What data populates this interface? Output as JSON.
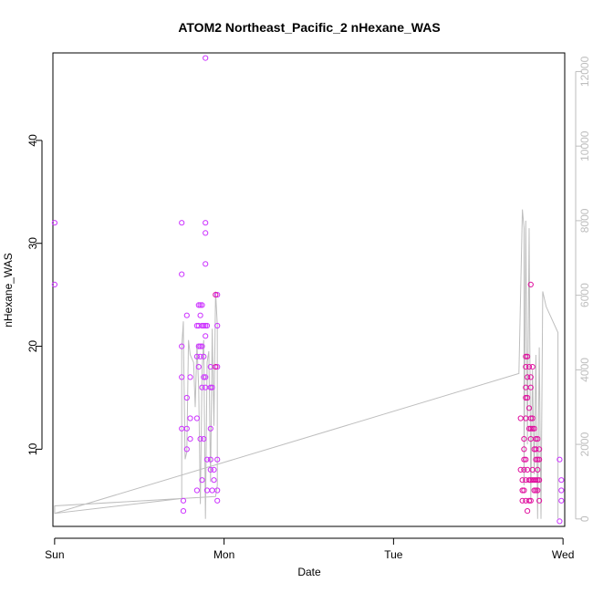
{
  "chart_data": {
    "type": "scatter",
    "title": "ATOM2 Northeast_Pacific_2 nHexane_WAS",
    "xlabel": "Date",
    "ylabel": "nHexane_WAS",
    "x_tick_labels": [
      "Sun",
      "Mon",
      "Tue",
      "Wed"
    ],
    "xlim_days": [
      -0.01,
      3.01
    ],
    "ylim": [
      2.5,
      48.5
    ],
    "y_ticks": [
      10,
      20,
      30,
      40
    ],
    "right_axis": {
      "ylim": [
        -200,
        12500
      ],
      "ticks": [
        0,
        2000,
        4000,
        6000,
        8000,
        10000,
        12000
      ],
      "tick_labels": [
        "0",
        "2000",
        "4000",
        "6000",
        "8000",
        "10000",
        "12000"
      ]
    },
    "colors": {
      "points_a": "#cc33ff",
      "points_b": "#e0109f",
      "line": "#bebebe",
      "axis": "#000000",
      "right_axis": "#bebebe"
    },
    "series": [
      {
        "color_key": "points_a",
        "points": [
          [
            0.0,
            32
          ],
          [
            0.0,
            26
          ],
          [
            0.75,
            32
          ],
          [
            0.75,
            27
          ],
          [
            0.75,
            20
          ],
          [
            0.75,
            17
          ],
          [
            0.75,
            12
          ],
          [
            0.76,
            5
          ],
          [
            0.76,
            4
          ],
          [
            0.78,
            23
          ],
          [
            0.78,
            15
          ],
          [
            0.78,
            12
          ],
          [
            0.78,
            10
          ],
          [
            0.8,
            17
          ],
          [
            0.8,
            13
          ],
          [
            0.8,
            11
          ],
          [
            0.84,
            22
          ],
          [
            0.84,
            19
          ],
          [
            0.84,
            13
          ],
          [
            0.84,
            6
          ],
          [
            0.85,
            24
          ],
          [
            0.85,
            22
          ],
          [
            0.85,
            20
          ],
          [
            0.85,
            18
          ],
          [
            0.86,
            24
          ],
          [
            0.86,
            23
          ],
          [
            0.86,
            20
          ],
          [
            0.86,
            19
          ],
          [
            0.86,
            11
          ],
          [
            0.87,
            24
          ],
          [
            0.87,
            22
          ],
          [
            0.87,
            20
          ],
          [
            0.87,
            16
          ],
          [
            0.87,
            7
          ],
          [
            0.88,
            22
          ],
          [
            0.88,
            19
          ],
          [
            0.88,
            17
          ],
          [
            0.88,
            11
          ],
          [
            0.89,
            48
          ],
          [
            0.89,
            32
          ],
          [
            0.89,
            31
          ],
          [
            0.89,
            28
          ],
          [
            0.89,
            22
          ],
          [
            0.89,
            21
          ],
          [
            0.89,
            17
          ],
          [
            0.89,
            16
          ],
          [
            0.9,
            22
          ],
          [
            0.9,
            9
          ],
          [
            0.9,
            6
          ],
          [
            0.92,
            18
          ],
          [
            0.92,
            16
          ],
          [
            0.92,
            12
          ],
          [
            0.92,
            9
          ],
          [
            0.92,
            8
          ],
          [
            0.93,
            16
          ],
          [
            0.93,
            6
          ],
          [
            0.94,
            8
          ],
          [
            0.94,
            7
          ],
          [
            0.96,
            25
          ],
          [
            0.96,
            22
          ],
          [
            0.96,
            18
          ],
          [
            0.96,
            9
          ],
          [
            0.96,
            6
          ],
          [
            0.96,
            5
          ],
          [
            2.98,
            9
          ],
          [
            2.99,
            7
          ],
          [
            2.99,
            6
          ],
          [
            2.99,
            5
          ],
          [
            2.98,
            3
          ]
        ]
      },
      {
        "color_key": "points_b",
        "points": [
          [
            0.95,
            25
          ],
          [
            0.95,
            18
          ],
          [
            2.75,
            13
          ],
          [
            2.75,
            8
          ],
          [
            2.76,
            7
          ],
          [
            2.76,
            6
          ],
          [
            2.76,
            5
          ],
          [
            2.77,
            11
          ],
          [
            2.77,
            10
          ],
          [
            2.77,
            9
          ],
          [
            2.77,
            8
          ],
          [
            2.77,
            6
          ],
          [
            2.78,
            19
          ],
          [
            2.78,
            18
          ],
          [
            2.78,
            16
          ],
          [
            2.78,
            15
          ],
          [
            2.78,
            13
          ],
          [
            2.78,
            9
          ],
          [
            2.78,
            7
          ],
          [
            2.78,
            5
          ],
          [
            2.79,
            19
          ],
          [
            2.79,
            17
          ],
          [
            2.79,
            15
          ],
          [
            2.79,
            8
          ],
          [
            2.79,
            4
          ],
          [
            2.8,
            18
          ],
          [
            2.8,
            14
          ],
          [
            2.8,
            12
          ],
          [
            2.8,
            7
          ],
          [
            2.8,
            5
          ],
          [
            2.81,
            26
          ],
          [
            2.81,
            17
          ],
          [
            2.81,
            16
          ],
          [
            2.81,
            13
          ],
          [
            2.81,
            12
          ],
          [
            2.81,
            11
          ],
          [
            2.81,
            7
          ],
          [
            2.81,
            5
          ],
          [
            2.82,
            18
          ],
          [
            2.82,
            13
          ],
          [
            2.82,
            12
          ],
          [
            2.82,
            8
          ],
          [
            2.82,
            7
          ],
          [
            2.83,
            12
          ],
          [
            2.83,
            10
          ],
          [
            2.83,
            7
          ],
          [
            2.83,
            6
          ],
          [
            2.84,
            11
          ],
          [
            2.84,
            10
          ],
          [
            2.84,
            9
          ],
          [
            2.84,
            7
          ],
          [
            2.84,
            6
          ],
          [
            2.85,
            11
          ],
          [
            2.85,
            9
          ],
          [
            2.85,
            8
          ],
          [
            2.85,
            7
          ],
          [
            2.85,
            6
          ],
          [
            2.86,
            10
          ],
          [
            2.86,
            9
          ],
          [
            2.86,
            7
          ],
          [
            2.86,
            5
          ]
        ]
      }
    ],
    "line_series": {
      "color_key": "line",
      "axis": "right",
      "points": [
        [
          0.0,
          350
        ],
        [
          0.0,
          150
        ],
        [
          0.75,
          550
        ],
        [
          0.75,
          4600
        ],
        [
          0.76,
          5300
        ],
        [
          0.76,
          5000
        ],
        [
          0.77,
          1600
        ],
        [
          0.78,
          1800
        ],
        [
          0.79,
          4800
        ],
        [
          0.8,
          4400
        ],
        [
          0.81,
          4300
        ],
        [
          0.82,
          4200
        ],
        [
          0.83,
          3000
        ],
        [
          0.84,
          4700
        ],
        [
          0.85,
          3500
        ],
        [
          0.86,
          400
        ],
        [
          0.87,
          4000
        ],
        [
          0.88,
          4800
        ],
        [
          0.89,
          0
        ],
        [
          0.9,
          4200
        ],
        [
          0.91,
          4500
        ],
        [
          0.92,
          1000
        ],
        [
          0.93,
          5100
        ],
        [
          0.94,
          2500
        ],
        [
          0.95,
          6100
        ],
        [
          0.96,
          5200
        ],
        [
          0.96,
          900
        ],
        [
          0.95,
          600
        ],
        [
          0.0,
          350
        ],
        [
          0.0,
          150
        ],
        [
          2.74,
          3900
        ],
        [
          2.76,
          8300
        ],
        [
          2.77,
          7800
        ],
        [
          2.77,
          900
        ],
        [
          2.78,
          8000
        ],
        [
          2.79,
          2000
        ],
        [
          2.8,
          7800
        ],
        [
          2.81,
          500
        ],
        [
          2.82,
          4000
        ],
        [
          2.83,
          1200
        ],
        [
          2.84,
          4400
        ],
        [
          2.85,
          0
        ],
        [
          2.86,
          4600
        ],
        [
          2.87,
          0
        ],
        [
          2.88,
          6100
        ],
        [
          2.9,
          5700
        ],
        [
          2.97,
          5000
        ],
        [
          2.97,
          0
        ]
      ]
    }
  }
}
